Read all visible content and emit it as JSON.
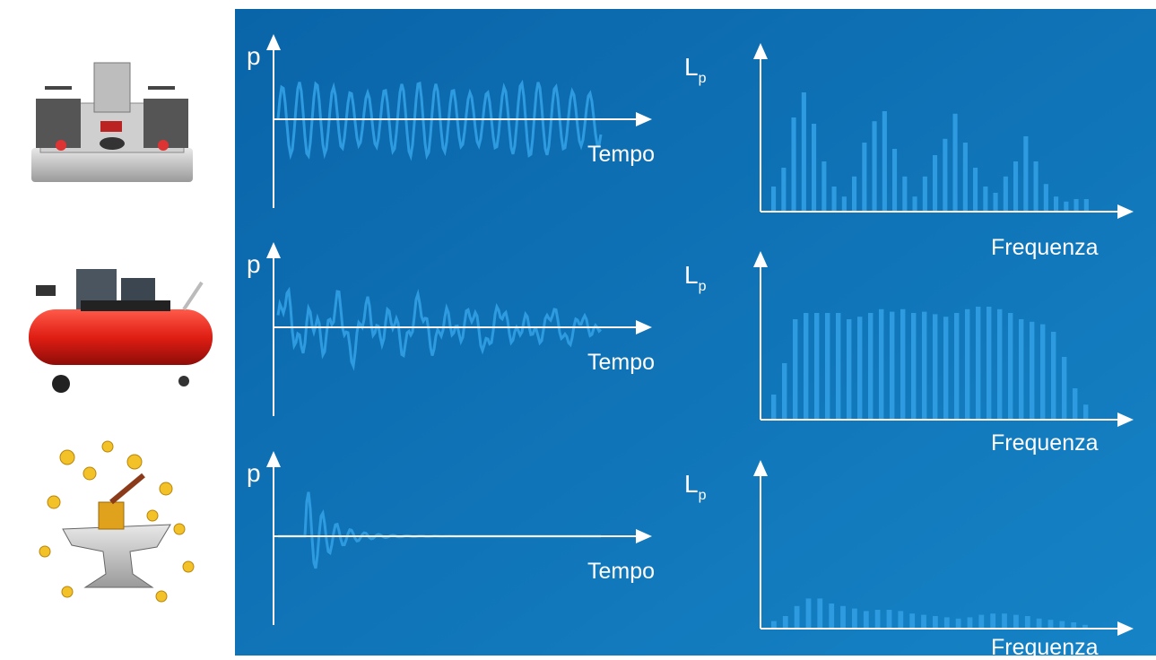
{
  "rows": [
    {
      "time_axis": "p",
      "time_label": "Tempo",
      "level_symbol": "L",
      "level_subscript": "p",
      "freq_label": "Frequenza",
      "spectrum": [
        20,
        35,
        75,
        95,
        70,
        40,
        20,
        12,
        28,
        55,
        72,
        80,
        50,
        28,
        12,
        28,
        45,
        58,
        78,
        55,
        35,
        20,
        15,
        28,
        40,
        60,
        40,
        22,
        12,
        8,
        10,
        10
      ]
    },
    {
      "time_axis": "p",
      "time_label": "Tempo",
      "level_symbol": "L",
      "level_subscript": "p",
      "freq_label": "Frequenza",
      "spectrum": [
        20,
        45,
        80,
        85,
        85,
        85,
        85,
        80,
        82,
        85,
        88,
        86,
        88,
        85,
        86,
        84,
        82,
        85,
        88,
        90,
        90,
        88,
        85,
        80,
        78,
        76,
        70,
        50,
        25,
        12
      ]
    },
    {
      "time_axis": "p",
      "time_label": "Tempo",
      "level_symbol": "L",
      "level_subscript": "p",
      "freq_label": "Frequenza",
      "spectrum": [
        6,
        10,
        18,
        24,
        24,
        20,
        18,
        16,
        14,
        15,
        15,
        14,
        12,
        11,
        10,
        9,
        8,
        9,
        11,
        12,
        12,
        11,
        10,
        8,
        7,
        6,
        5,
        3
      ]
    }
  ]
}
